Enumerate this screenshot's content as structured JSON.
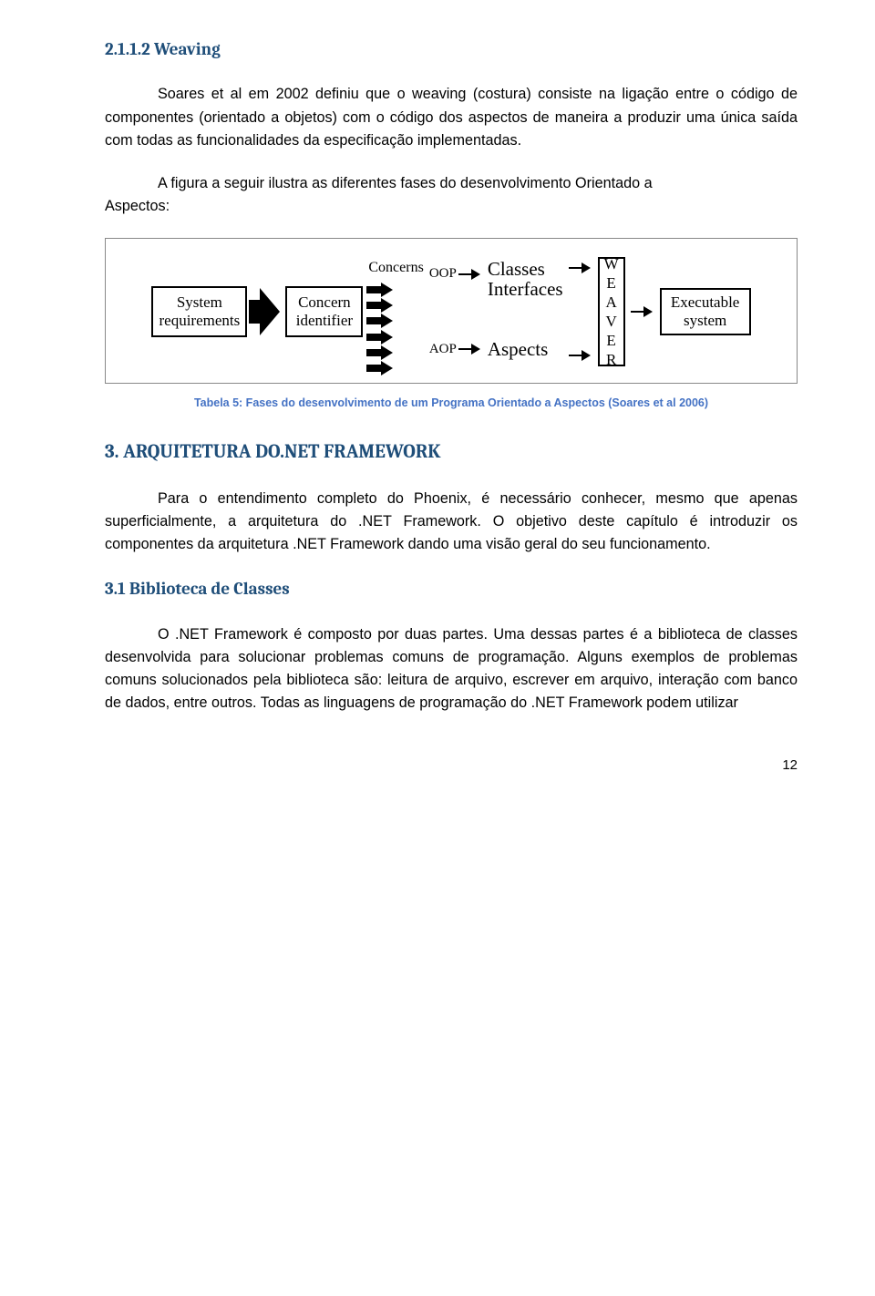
{
  "sec1": {
    "heading": "2.1.1.2 Weaving",
    "p1": "Soares et al em 2002 definiu que o weaving (costura) consiste na ligação entre o código de componentes (orientado a objetos) com o código dos aspectos de maneira a produzir uma única saída com todas as funcionalidades da especificação implementadas.",
    "p2_a": "A figura a seguir ilustra as diferentes fases do desenvolvimento Orientado a",
    "p2_b": "Aspectos:"
  },
  "figure": {
    "box_system": "System requirements",
    "box_concern": "Concern identifier",
    "lbl_concerns": "Concerns",
    "lbl_oop": "OOP",
    "lbl_aop": "AOP",
    "out_classes": "Classes",
    "out_interfaces": "Interfaces",
    "out_aspects": "Aspects",
    "weaver_letters": [
      "W",
      "E",
      "A",
      "V",
      "E",
      "R"
    ],
    "box_exec": "Executable system"
  },
  "caption": "Tabela 5: Fases do desenvolvimento de um Programa Orientado a Aspectos (Soares et al 2006)",
  "sec2": {
    "heading": "3. ARQUITETURA DO.NET FRAMEWORK",
    "p1": "Para o entendimento completo do Phoenix, é necessário conhecer, mesmo que apenas superficialmente, a arquitetura do .NET Framework. O objetivo deste capítulo é introduzir os componentes da arquitetura .NET Framework dando uma visão geral do seu funcionamento."
  },
  "sec3": {
    "heading": "3.1 Biblioteca de Classes",
    "p1": "O .NET Framework é composto por duas partes. Uma dessas partes é a biblioteca de classes desenvolvida para solucionar problemas comuns de programação. Alguns exemplos de problemas comuns solucionados pela biblioteca são: leitura de arquivo, escrever em arquivo, interação com banco de dados, entre outros. Todas as linguagens de programação do .NET Framework podem utilizar"
  },
  "page": "12"
}
